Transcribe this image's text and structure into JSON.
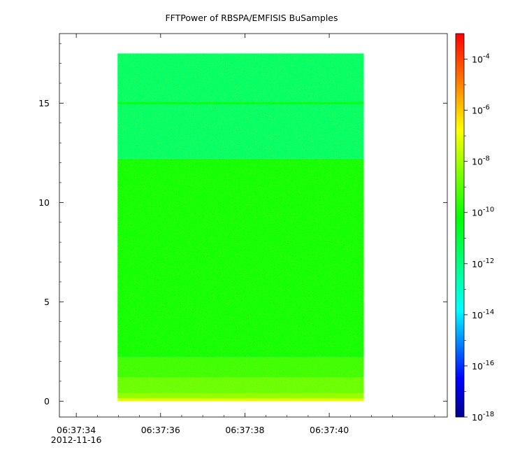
{
  "chart_data": {
    "type": "heatmap",
    "title": "FFTPower of RBSPA/EMFISIS  BuSamples",
    "xlabel": "",
    "ylabel": "",
    "x_date": "2012-11-16",
    "x_ticks": [
      {
        "value": "06:37:34",
        "sub": "2012-11-16"
      },
      {
        "value": "06:37:36",
        "sub": ""
      },
      {
        "value": "06:37:38",
        "sub": ""
      },
      {
        "value": "06:37:40",
        "sub": ""
      }
    ],
    "x_range": [
      "06:37:33.6",
      "06:37:42.8"
    ],
    "data_time_range": [
      "06:37:34.98",
      "06:37:40.82"
    ],
    "y_ticks": [
      "0",
      "5",
      "10",
      "15"
    ],
    "y_range": [
      -0.8,
      18.5
    ],
    "data_y_range": [
      0,
      17.5
    ],
    "colorbar": {
      "scale": "log",
      "range": [
        1e-18,
        0.001
      ],
      "tick_labels": [
        {
          "base": "10",
          "exp": "-4"
        },
        {
          "base": "10",
          "exp": "-6"
        },
        {
          "base": "10",
          "exp": "-8"
        },
        {
          "base": "10",
          "exp": "-10"
        },
        {
          "base": "10",
          "exp": "-12"
        },
        {
          "base": "10",
          "exp": "-14"
        },
        {
          "base": "10",
          "exp": "-16"
        },
        {
          "base": "10",
          "exp": "-18"
        }
      ],
      "tick_values_log10": [
        -4,
        -6,
        -8,
        -10,
        -12,
        -14,
        -16,
        -18
      ],
      "colors": [
        "#00008c",
        "#0000ff",
        "#00ffff",
        "#00ff00",
        "#ffff00",
        "#ff8000",
        "#ff0000"
      ]
    },
    "spectral_profile": [
      {
        "y_from": 0.0,
        "y_to": 0.15,
        "log10_power": -7.1
      },
      {
        "y_from": 0.15,
        "y_to": 0.4,
        "log10_power": -8.2
      },
      {
        "y_from": 0.4,
        "y_to": 1.2,
        "log10_power": -8.8
      },
      {
        "y_from": 1.2,
        "y_to": 2.2,
        "log10_power": -9.4
      },
      {
        "y_from": 2.2,
        "y_to": 12.2,
        "log10_power": -10.0
      },
      {
        "y_from": 12.2,
        "y_to": 17.5,
        "log10_power": -11.6
      }
    ],
    "line_feature": {
      "y": 15.0,
      "log10_power": -10.3
    },
    "grid": false,
    "legend": "colorbar-right"
  }
}
